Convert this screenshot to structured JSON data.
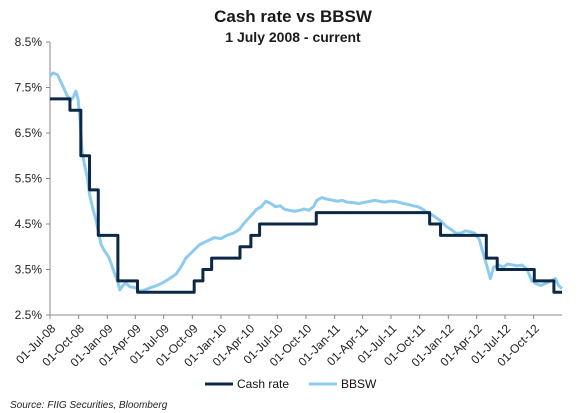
{
  "chart_data": {
    "type": "line",
    "title": "Cash rate vs BBSW",
    "subtitle": "1 July 2008 - current",
    "y_ticks": [
      "8.5%",
      "7.5%",
      "6.5%",
      "5.5%",
      "4.5%",
      "3.5%",
      "2.5%"
    ],
    "ylim": [
      2.5,
      8.5
    ],
    "x_range": [
      "2008-07-01",
      "2012-12-31"
    ],
    "x_ticks": [
      {
        "date": "2008-07-01",
        "label": "01-Jul-08"
      },
      {
        "date": "2008-10-01",
        "label": "01-Oct-08"
      },
      {
        "date": "2009-01-01",
        "label": "01-Jan-09"
      },
      {
        "date": "2009-04-01",
        "label": "01-Apr-09"
      },
      {
        "date": "2009-07-01",
        "label": "01-Jul-09"
      },
      {
        "date": "2009-10-01",
        "label": "01-Oct-09"
      },
      {
        "date": "2010-01-01",
        "label": "01-Jan-10"
      },
      {
        "date": "2010-04-01",
        "label": "01-Apr-10"
      },
      {
        "date": "2010-07-01",
        "label": "01-Jul-10"
      },
      {
        "date": "2010-10-01",
        "label": "01-Oct-10"
      },
      {
        "date": "2011-01-01",
        "label": "01-Jan-11"
      },
      {
        "date": "2011-04-01",
        "label": "01-Apr-11"
      },
      {
        "date": "2011-07-01",
        "label": "01-Jul-11"
      },
      {
        "date": "2011-10-01",
        "label": "01-Oct-11"
      },
      {
        "date": "2012-01-01",
        "label": "01-Jan-12"
      },
      {
        "date": "2012-04-01",
        "label": "01-Apr-12"
      },
      {
        "date": "2012-07-01",
        "label": "01-Jul-12"
      },
      {
        "date": "2012-10-01",
        "label": "01-Oct-12"
      }
    ],
    "legend_position": "bottom",
    "grid": false,
    "series": [
      {
        "name": "Cash rate",
        "color": "#0d2847",
        "step": true,
        "points": [
          {
            "date": "2008-07-01",
            "y": 7.25
          },
          {
            "date": "2008-09-03",
            "y": 7.0
          },
          {
            "date": "2008-10-08",
            "y": 6.0
          },
          {
            "date": "2008-11-05",
            "y": 5.25
          },
          {
            "date": "2008-12-03",
            "y": 4.25
          },
          {
            "date": "2009-02-04",
            "y": 3.25
          },
          {
            "date": "2009-04-08",
            "y": 3.0
          },
          {
            "date": "2009-10-07",
            "y": 3.25
          },
          {
            "date": "2009-11-04",
            "y": 3.5
          },
          {
            "date": "2009-12-02",
            "y": 3.75
          },
          {
            "date": "2010-03-03",
            "y": 4.0
          },
          {
            "date": "2010-04-07",
            "y": 4.25
          },
          {
            "date": "2010-05-05",
            "y": 4.5
          },
          {
            "date": "2010-11-03",
            "y": 4.75
          },
          {
            "date": "2011-11-02",
            "y": 4.5
          },
          {
            "date": "2011-12-07",
            "y": 4.25
          },
          {
            "date": "2012-05-02",
            "y": 3.75
          },
          {
            "date": "2012-06-06",
            "y": 3.5
          },
          {
            "date": "2012-10-03",
            "y": 3.25
          },
          {
            "date": "2012-12-05",
            "y": 3.0
          },
          {
            "date": "2012-12-31",
            "y": 3.0
          }
        ]
      },
      {
        "name": "BBSW",
        "color": "#8ecbef",
        "step": false,
        "points": [
          {
            "date": "2008-07-01",
            "y": 7.75
          },
          {
            "date": "2008-07-10",
            "y": 7.82
          },
          {
            "date": "2008-07-25",
            "y": 7.78
          },
          {
            "date": "2008-08-10",
            "y": 7.55
          },
          {
            "date": "2008-08-25",
            "y": 7.32
          },
          {
            "date": "2008-09-05",
            "y": 7.22
          },
          {
            "date": "2008-09-15",
            "y": 7.3
          },
          {
            "date": "2008-09-22",
            "y": 7.42
          },
          {
            "date": "2008-09-29",
            "y": 7.25
          },
          {
            "date": "2008-10-06",
            "y": 6.75
          },
          {
            "date": "2008-10-12",
            "y": 6.1
          },
          {
            "date": "2008-10-20",
            "y": 5.8
          },
          {
            "date": "2008-10-28",
            "y": 5.55
          },
          {
            "date": "2008-11-05",
            "y": 5.15
          },
          {
            "date": "2008-11-15",
            "y": 4.85
          },
          {
            "date": "2008-11-25",
            "y": 4.6
          },
          {
            "date": "2008-12-03",
            "y": 4.35
          },
          {
            "date": "2008-12-12",
            "y": 4.05
          },
          {
            "date": "2008-12-22",
            "y": 3.92
          },
          {
            "date": "2009-01-05",
            "y": 3.78
          },
          {
            "date": "2009-01-15",
            "y": 3.6
          },
          {
            "date": "2009-01-25",
            "y": 3.4
          },
          {
            "date": "2009-02-05",
            "y": 3.2
          },
          {
            "date": "2009-02-10",
            "y": 3.05
          },
          {
            "date": "2009-02-20",
            "y": 3.15
          },
          {
            "date": "2009-03-01",
            "y": 3.2
          },
          {
            "date": "2009-03-15",
            "y": 3.12
          },
          {
            "date": "2009-04-01",
            "y": 3.1
          },
          {
            "date": "2009-04-15",
            "y": 3.02
          },
          {
            "date": "2009-05-01",
            "y": 3.05
          },
          {
            "date": "2009-05-20",
            "y": 3.1
          },
          {
            "date": "2009-06-10",
            "y": 3.15
          },
          {
            "date": "2009-07-01",
            "y": 3.22
          },
          {
            "date": "2009-07-20",
            "y": 3.3
          },
          {
            "date": "2009-08-10",
            "y": 3.4
          },
          {
            "date": "2009-08-25",
            "y": 3.55
          },
          {
            "date": "2009-09-10",
            "y": 3.75
          },
          {
            "date": "2009-09-25",
            "y": 3.85
          },
          {
            "date": "2009-10-10",
            "y": 3.95
          },
          {
            "date": "2009-10-25",
            "y": 4.05
          },
          {
            "date": "2009-11-10",
            "y": 4.1
          },
          {
            "date": "2009-11-25",
            "y": 4.15
          },
          {
            "date": "2009-12-10",
            "y": 4.2
          },
          {
            "date": "2010-01-01",
            "y": 4.18
          },
          {
            "date": "2010-01-20",
            "y": 4.25
          },
          {
            "date": "2010-02-10",
            "y": 4.3
          },
          {
            "date": "2010-03-01",
            "y": 4.38
          },
          {
            "date": "2010-03-20",
            "y": 4.55
          },
          {
            "date": "2010-04-10",
            "y": 4.7
          },
          {
            "date": "2010-04-25",
            "y": 4.82
          },
          {
            "date": "2010-05-10",
            "y": 4.88
          },
          {
            "date": "2010-05-25",
            "y": 5.0
          },
          {
            "date": "2010-06-10",
            "y": 4.95
          },
          {
            "date": "2010-06-25",
            "y": 4.88
          },
          {
            "date": "2010-07-10",
            "y": 4.9
          },
          {
            "date": "2010-07-25",
            "y": 4.82
          },
          {
            "date": "2010-08-10",
            "y": 4.8
          },
          {
            "date": "2010-08-25",
            "y": 4.78
          },
          {
            "date": "2010-09-10",
            "y": 4.8
          },
          {
            "date": "2010-09-25",
            "y": 4.83
          },
          {
            "date": "2010-10-10",
            "y": 4.8
          },
          {
            "date": "2010-10-25",
            "y": 4.88
          },
          {
            "date": "2010-11-05",
            "y": 5.02
          },
          {
            "date": "2010-11-20",
            "y": 5.08
          },
          {
            "date": "2010-12-05",
            "y": 5.05
          },
          {
            "date": "2010-12-20",
            "y": 5.03
          },
          {
            "date": "2011-01-10",
            "y": 5.0
          },
          {
            "date": "2011-01-25",
            "y": 5.02
          },
          {
            "date": "2011-02-10",
            "y": 4.98
          },
          {
            "date": "2011-03-01",
            "y": 4.97
          },
          {
            "date": "2011-03-20",
            "y": 4.95
          },
          {
            "date": "2011-04-10",
            "y": 4.98
          },
          {
            "date": "2011-04-25",
            "y": 5.0
          },
          {
            "date": "2011-05-10",
            "y": 5.02
          },
          {
            "date": "2011-05-25",
            "y": 5.0
          },
          {
            "date": "2011-06-10",
            "y": 4.98
          },
          {
            "date": "2011-06-25",
            "y": 5.0
          },
          {
            "date": "2011-07-10",
            "y": 5.0
          },
          {
            "date": "2011-07-25",
            "y": 4.98
          },
          {
            "date": "2011-08-10",
            "y": 4.95
          },
          {
            "date": "2011-08-25",
            "y": 4.93
          },
          {
            "date": "2011-09-10",
            "y": 4.9
          },
          {
            "date": "2011-09-25",
            "y": 4.88
          },
          {
            "date": "2011-10-10",
            "y": 4.83
          },
          {
            "date": "2011-10-25",
            "y": 4.75
          },
          {
            "date": "2011-11-10",
            "y": 4.7
          },
          {
            "date": "2011-11-25",
            "y": 4.63
          },
          {
            "date": "2011-12-10",
            "y": 4.55
          },
          {
            "date": "2011-12-25",
            "y": 4.45
          },
          {
            "date": "2012-01-10",
            "y": 4.38
          },
          {
            "date": "2012-01-25",
            "y": 4.3
          },
          {
            "date": "2012-02-10",
            "y": 4.3
          },
          {
            "date": "2012-02-25",
            "y": 4.35
          },
          {
            "date": "2012-03-10",
            "y": 4.33
          },
          {
            "date": "2012-03-25",
            "y": 4.3
          },
          {
            "date": "2012-04-10",
            "y": 4.15
          },
          {
            "date": "2012-04-20",
            "y": 3.9
          },
          {
            "date": "2012-05-05",
            "y": 3.55
          },
          {
            "date": "2012-05-15",
            "y": 3.3
          },
          {
            "date": "2012-05-25",
            "y": 3.55
          },
          {
            "date": "2012-06-10",
            "y": 3.6
          },
          {
            "date": "2012-06-25",
            "y": 3.55
          },
          {
            "date": "2012-07-10",
            "y": 3.62
          },
          {
            "date": "2012-07-25",
            "y": 3.6
          },
          {
            "date": "2012-08-10",
            "y": 3.58
          },
          {
            "date": "2012-08-25",
            "y": 3.6
          },
          {
            "date": "2012-09-10",
            "y": 3.5
          },
          {
            "date": "2012-09-25",
            "y": 3.25
          },
          {
            "date": "2012-10-10",
            "y": 3.18
          },
          {
            "date": "2012-10-25",
            "y": 3.15
          },
          {
            "date": "2012-11-10",
            "y": 3.2
          },
          {
            "date": "2012-11-25",
            "y": 3.25
          },
          {
            "date": "2012-12-10",
            "y": 3.3
          },
          {
            "date": "2012-12-20",
            "y": 3.15
          },
          {
            "date": "2012-12-31",
            "y": 3.08
          }
        ]
      }
    ]
  },
  "source": "Source: FIIG Securities, Bloomberg"
}
